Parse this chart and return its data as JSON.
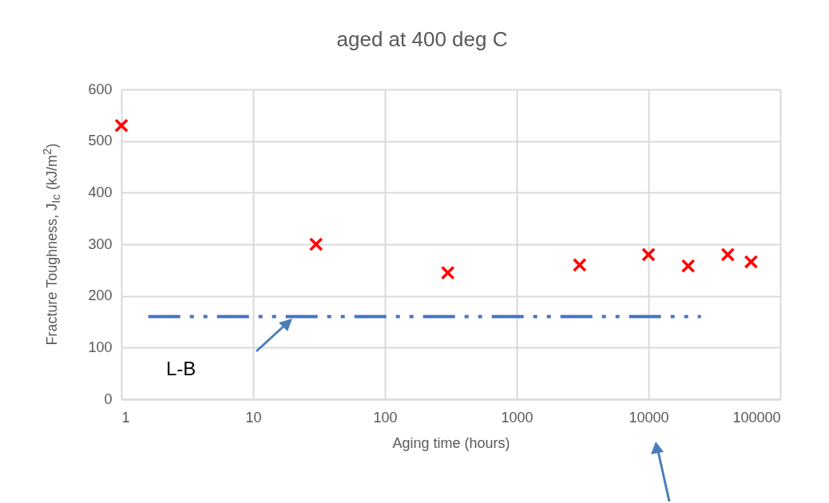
{
  "chart_data": {
    "type": "scatter",
    "title": "aged at 400 deg C",
    "xlabel": "Aging time (hours)",
    "ylabel": "Fracture Toughness, J$_{Ic}$ (kJ/m$^{2}$)",
    "log": "x",
    "grid": true,
    "xlim": [
      1,
      100000
    ],
    "xticks": [
      1,
      10,
      100,
      1000,
      10000,
      100000
    ],
    "ylim": [
      0,
      600
    ],
    "yticks": [
      0,
      100,
      200,
      300,
      400,
      500,
      600
    ],
    "series": [
      {
        "marker": "cross",
        "color": "#ff0000",
        "x": [
          1,
          30,
          300,
          3000,
          10000,
          20000,
          40000,
          60000
        ],
        "values": [
          530,
          300,
          245,
          260,
          280,
          258,
          280,
          266
        ]
      },
      {
        "type": "line",
        "color": "#4472c4",
        "line_style": "dashed",
        "x": [
          1.6,
          25000
        ],
        "values": [
          160,
          160
        ]
      }
    ],
    "annotations": [
      "L-B"
    ]
  }
}
